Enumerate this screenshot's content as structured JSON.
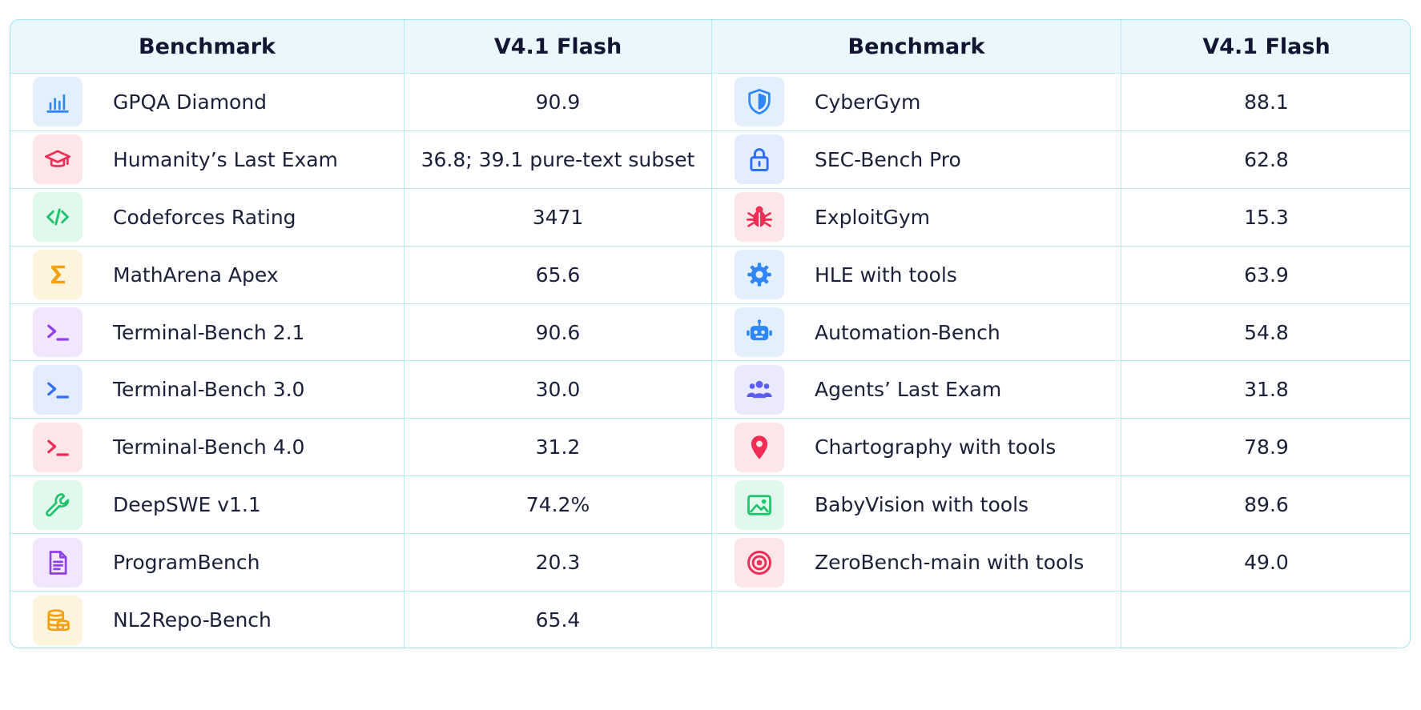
{
  "headers": {
    "left_benchmark": "Benchmark",
    "left_score": "V4.1 Flash",
    "right_benchmark": "Benchmark",
    "right_score": "V4.1 Flash"
  },
  "left_rows": [
    {
      "name": "GPQA Diamond",
      "value": "90.9",
      "icon": "bar-chart-icon",
      "color": "#2f86f6",
      "bg": "#e2f0fe"
    },
    {
      "name": "Humanity’s Last Exam",
      "value": "36.8; 39.1 pure-text subset",
      "icon": "graduation-cap-icon",
      "color": "#ef2d55",
      "bg": "#fde6ea"
    },
    {
      "name": "Codeforces Rating",
      "value": "3471",
      "icon": "code-brackets-icon",
      "color": "#1fc46a",
      "bg": "#e1f8ec"
    },
    {
      "name": "MathArena Apex",
      "value": "65.6",
      "icon": "sigma-icon",
      "color": "#f5a10e",
      "bg": "#fef3dc"
    },
    {
      "name": "Terminal-Bench 2.1",
      "value": "90.6",
      "icon": "terminal-icon",
      "color": "#8f3ff0",
      "bg": "#f1e6fd"
    },
    {
      "name": "Terminal-Bench 3.0",
      "value": "30.0",
      "icon": "terminal-icon",
      "color": "#2f6ff6",
      "bg": "#e2ecfe"
    },
    {
      "name": "Terminal-Bench 4.0",
      "value": "31.2",
      "icon": "terminal-icon",
      "color": "#ef2d55",
      "bg": "#fde6ea"
    },
    {
      "name": "DeepSWE v1.1",
      "value": "74.2%",
      "icon": "wrench-icon",
      "color": "#1fc46a",
      "bg": "#e1f8ec"
    },
    {
      "name": "ProgramBench",
      "value": "20.3",
      "icon": "document-icon",
      "color": "#8f3ff0",
      "bg": "#f1e6fd"
    },
    {
      "name": "NL2Repo-Bench",
      "value": "65.4",
      "icon": "database-icon",
      "color": "#f5a10e",
      "bg": "#fef3dc"
    }
  ],
  "right_rows": [
    {
      "name": "CyberGym",
      "value": "88.1",
      "icon": "shield-icon",
      "color": "#2f86f6",
      "bg": "#e2f0fe"
    },
    {
      "name": "SEC-Bench Pro",
      "value": "62.8",
      "icon": "lock-icon",
      "color": "#2f6ff6",
      "bg": "#e2ecfe"
    },
    {
      "name": "ExploitGym",
      "value": "15.3",
      "icon": "bug-icon",
      "color": "#ef2d55",
      "bg": "#fde6ea"
    },
    {
      "name": "HLE with tools",
      "value": "63.9",
      "icon": "gear-icon",
      "color": "#2f86f6",
      "bg": "#e2f0fe"
    },
    {
      "name": "Automation-Bench",
      "value": "54.8",
      "icon": "robot-icon",
      "color": "#2f86f6",
      "bg": "#e2f0fe"
    },
    {
      "name": "Agents’ Last Exam",
      "value": "31.8",
      "icon": "users-icon",
      "color": "#5b5ff0",
      "bg": "#ebeafd"
    },
    {
      "name": "Chartography with tools",
      "value": "78.9",
      "icon": "map-pin-icon",
      "color": "#ef2d55",
      "bg": "#fde6ea"
    },
    {
      "name": "BabyVision with tools",
      "value": "89.6",
      "icon": "image-icon",
      "color": "#1fc46a",
      "bg": "#e1f8ec"
    },
    {
      "name": "ZeroBench-main with tools",
      "value": "49.0",
      "icon": "target-icon",
      "color": "#ef2d55",
      "bg": "#fde6ea"
    }
  ]
}
